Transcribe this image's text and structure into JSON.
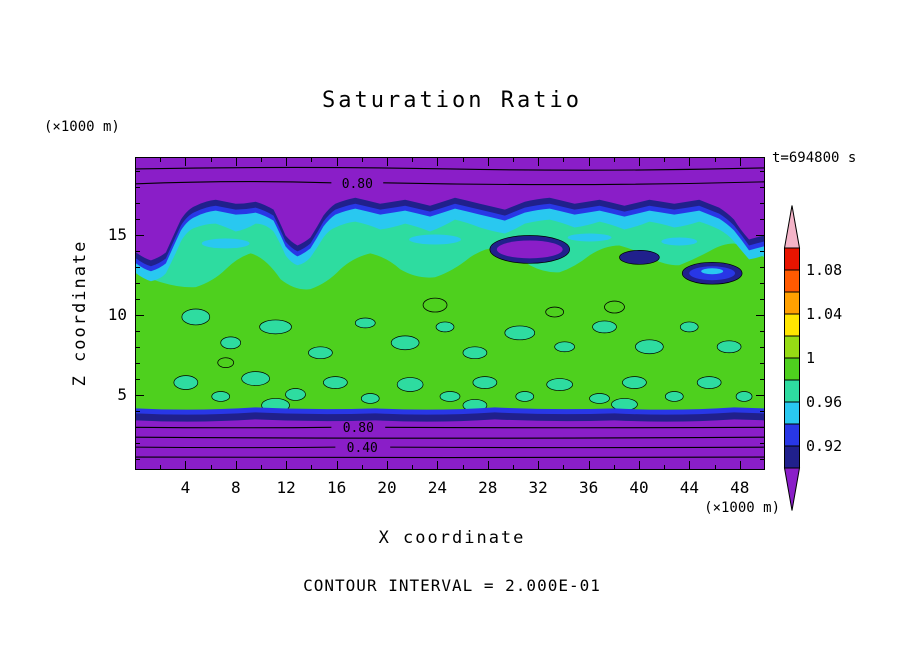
{
  "title": "Saturation Ratio",
  "annotations": {
    "time": "t=694800 s",
    "caption": "CONTOUR INTERVAL = 2.000E-01"
  },
  "axes": {
    "x_label": "X coordinate",
    "y_label": "Z coordinate",
    "x_unit": "(×1000 m)",
    "y_unit": "(×1000 m)",
    "x_ticks": [
      4,
      8,
      12,
      16,
      20,
      24,
      28,
      32,
      36,
      40,
      44,
      48
    ],
    "x_minor_step": 2,
    "y_ticks": [
      5,
      10,
      15
    ],
    "y_minor_step": 1,
    "x_range": [
      0,
      50
    ],
    "y_range": [
      0,
      19.5
    ]
  },
  "colorbar": {
    "labels": [
      "1.08",
      "1.04",
      "1",
      "0.96",
      "0.92"
    ],
    "segment_colors": [
      "#e81400",
      "#ff5a00",
      "#ffa000",
      "#ffe600",
      "#96dc14",
      "#4ed01e",
      "#2edca0",
      "#29c8f0",
      "#2837e6",
      "#20208c"
    ],
    "segment_values_top_to_bottom": [
      "1.08-1.10",
      "1.06-1.08",
      "1.04-1.06",
      "1.02-1.04",
      "1.00-1.02",
      "0.98-1.00",
      "0.96-0.98",
      "0.94-0.96",
      "0.92-0.94",
      "0.90-0.92"
    ],
    "above_color": "#f4b4c8",
    "below_color": "#8a1ec8"
  },
  "palette": {
    "purple": "#8a1ec8",
    "navy": "#20208c",
    "blue": "#2837e6",
    "cyan": "#29c8f0",
    "spring": "#2edca0",
    "green": "#4ed01e",
    "pink": "#f4b4c8"
  },
  "contour_labels": [
    {
      "text": "0.80",
      "region": "upper purple band"
    },
    {
      "text": "0.80",
      "region": "lower purple band"
    },
    {
      "text": "0.40",
      "region": "lower purple band"
    }
  ],
  "chart_data": {
    "type": "heatmap",
    "subtype": "filled-contour",
    "title": "Saturation Ratio",
    "xlabel": "X coordinate (×1000 m)",
    "ylabel": "Z coordinate (×1000 m)",
    "x_ticks": [
      4,
      8,
      12,
      16,
      20,
      24,
      28,
      32,
      36,
      40,
      44,
      48
    ],
    "y_ticks": [
      5,
      10,
      15
    ],
    "x_range": [
      0,
      50
    ],
    "y_range": [
      0,
      19.5
    ],
    "time_annotation": "t=694800 s",
    "line_contour_interval": 0.2,
    "labeled_line_contours": [
      {
        "value": 0.8,
        "x_center": 17.5,
        "z": 18.0
      },
      {
        "value": 0.8,
        "x_center": 17.5,
        "z": 2.7
      },
      {
        "value": 0.4,
        "x_center": 18.0,
        "z": 1.6
      }
    ],
    "fill_levels": {
      "min": 0.9,
      "max": 1.1,
      "step": 0.02
    },
    "colorbar": {
      "tick_labels": [
        "1.08",
        "1.04",
        "1",
        "0.96",
        "0.92"
      ],
      "segment_colors_top_to_bottom": [
        "#e81400",
        "#ff5a00",
        "#ffa000",
        "#ffe600",
        "#96dc14",
        "#4ed01e",
        "#2edca0",
        "#29c8f0",
        "#2837e6",
        "#20208c"
      ],
      "above_range_color": "#f4b4c8",
      "below_range_color": "#8a1ec8",
      "position": "right"
    },
    "field_description": [
      "deep purple (saturation ratio < 0.9) bands along the top (z > 17) and bottom (z < 3) of the domain",
      "wavy cloud-top interface near z = 14-16 with nested navy/blue/cyan/teal layers and purple lobes dipping downward",
      "interior mostly green (~0.98-1.0) with mottled teal (0.96-0.98) convective plume patches between z = 3 and z = 13",
      "isolated purple/navy/blue lens-shaped patches near z = 13-15 around x = 30-45"
    ]
  }
}
